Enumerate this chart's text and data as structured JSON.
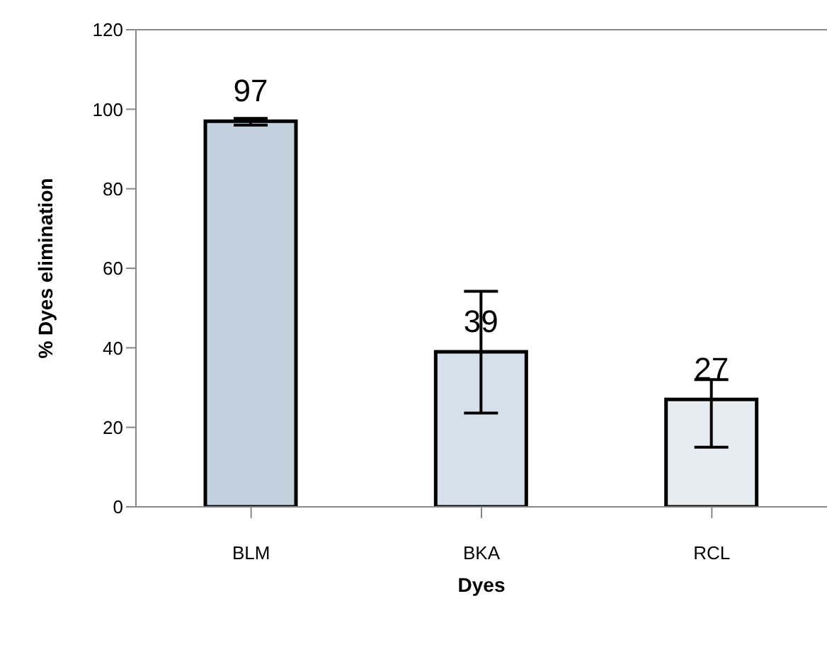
{
  "chart_data": {
    "type": "bar",
    "xlabel": "Dyes",
    "ylabel": "% Dyes elimination",
    "categories": [
      "BLM",
      "BKA",
      "RCL"
    ],
    "values": [
      97,
      39,
      27
    ],
    "colors": [
      "#c3d1de",
      "#d6e0ea",
      "#e6ecf2"
    ],
    "errors": [
      [
        96,
        97.7
      ],
      [
        23.6,
        54.2
      ],
      [
        15,
        32
      ]
    ],
    "data_labels": true,
    "ylim": [
      0,
      120
    ],
    "yticks": [
      0,
      20,
      40,
      60,
      80,
      100,
      120
    ],
    "grid": false,
    "legend": false
  }
}
